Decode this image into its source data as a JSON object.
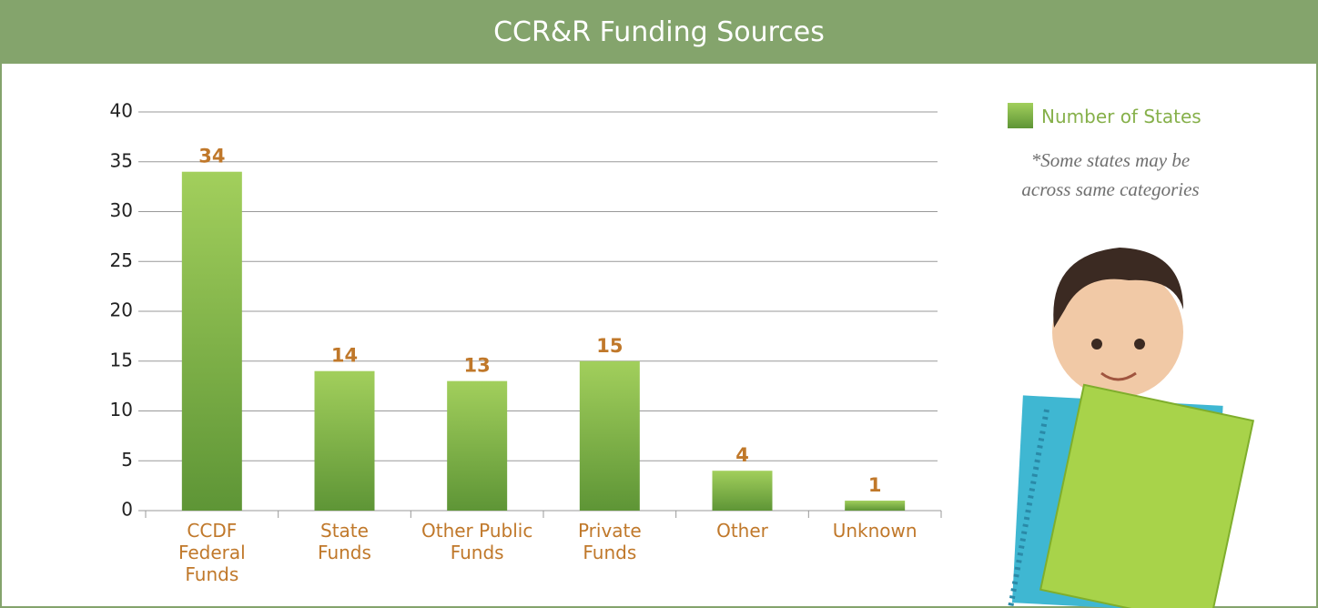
{
  "chart_data": {
    "type": "bar",
    "title": "CCR&R Funding Sources",
    "categories": [
      "CCDF\nFederal\nFunds",
      "State\nFunds",
      "Other Public\nFunds",
      "Private\nFunds",
      "Other",
      "Unknown"
    ],
    "series": [
      {
        "name": "Number of States",
        "color": "#7fb347",
        "values": [
          34,
          14,
          13,
          15,
          4,
          1
        ]
      }
    ],
    "ylim": [
      0,
      40
    ],
    "yticks": [
      0,
      5,
      10,
      15,
      20,
      25,
      30,
      35,
      40
    ],
    "grid": true,
    "annotation": "*Some states may be\nacross same categories"
  }
}
